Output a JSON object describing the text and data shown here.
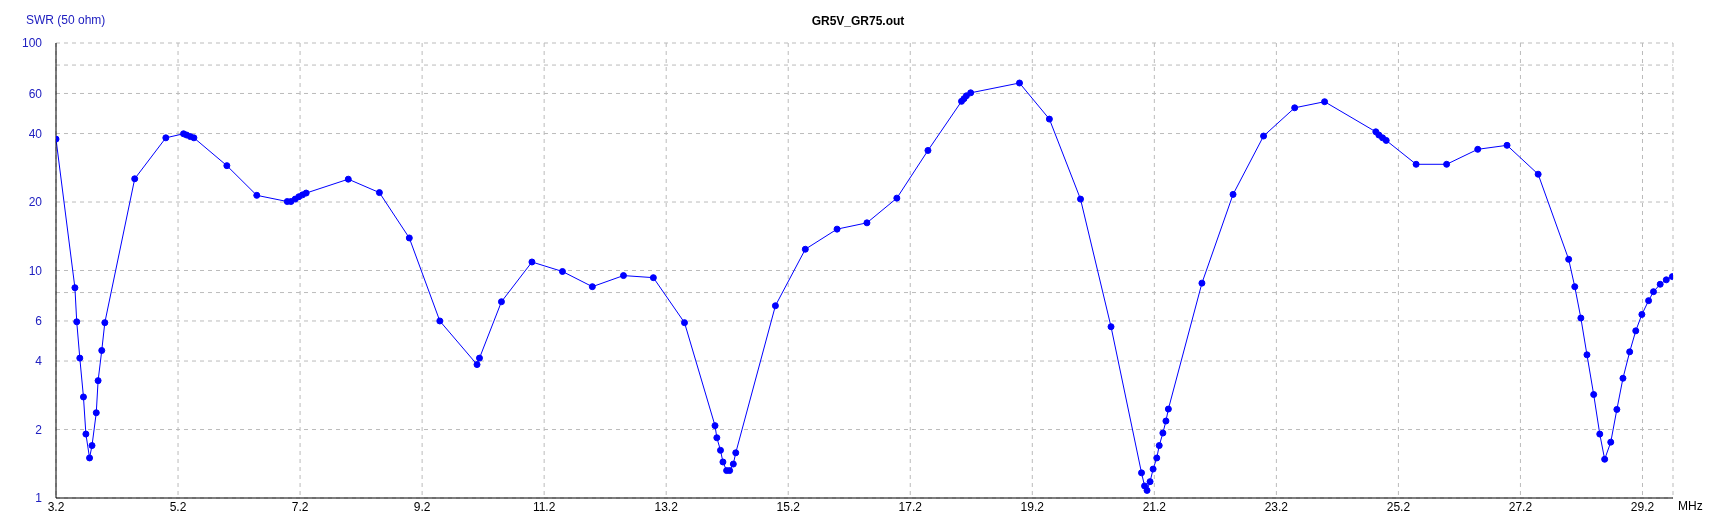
{
  "chart_data": {
    "type": "line",
    "title": "GR5V_GR75.out",
    "ylabel": "SWR (50 ohm)",
    "xlabel": "MHz",
    "x": [
      3.2,
      3.51,
      3.54,
      3.59,
      3.65,
      3.69,
      3.75,
      3.79,
      3.86,
      3.89,
      3.95,
      4.0,
      4.49,
      5.0,
      5.29,
      5.34,
      5.4,
      5.46,
      6.0,
      6.49,
      6.99,
      7.05,
      7.12,
      7.18,
      7.24,
      7.3,
      7.99,
      8.5,
      8.99,
      9.49,
      10.1,
      10.14,
      10.5,
      11.0,
      11.5,
      11.99,
      12.5,
      12.99,
      13.5,
      14.0,
      14.03,
      14.09,
      14.13,
      14.19,
      14.24,
      14.3,
      14.34,
      14.99,
      15.48,
      16.0,
      16.49,
      16.98,
      17.49,
      18.04,
      18.08,
      18.12,
      18.19,
      18.99,
      19.48,
      19.99,
      20.49,
      20.99,
      21.04,
      21.08,
      21.13,
      21.18,
      21.24,
      21.28,
      21.34,
      21.39,
      21.43,
      21.98,
      22.49,
      22.99,
      23.5,
      23.99,
      24.83,
      24.88,
      24.94,
      25.0,
      25.49,
      25.99,
      26.5,
      26.98,
      27.49,
      27.99,
      28.09,
      28.19,
      28.29,
      28.4,
      28.5,
      28.58,
      28.68,
      28.78,
      28.88,
      28.99,
      29.09,
      29.19,
      29.3,
      29.38,
      29.49,
      29.59,
      29.69
    ],
    "values": [
      37.8,
      8.4,
      5.95,
      4.12,
      2.78,
      1.91,
      1.5,
      1.7,
      2.37,
      3.28,
      4.45,
      5.9,
      25.3,
      38.3,
      39.9,
      39.4,
      38.8,
      38.3,
      28.9,
      21.4,
      20.1,
      20.1,
      20.6,
      21.1,
      21.5,
      21.9,
      25.2,
      22.0,
      13.9,
      6.0,
      3.86,
      4.12,
      7.29,
      10.9,
      9.9,
      8.49,
      9.5,
      9.3,
      5.9,
      2.08,
      1.84,
      1.62,
      1.44,
      1.32,
      1.32,
      1.41,
      1.58,
      7.0,
      12.4,
      15.2,
      16.2,
      20.8,
      33.7,
      55.4,
      56.9,
      58.6,
      60.4,
      66.7,
      46.3,
      20.6,
      5.66,
      1.29,
      1.13,
      1.08,
      1.18,
      1.34,
      1.5,
      1.7,
      1.93,
      2.18,
      2.46,
      8.8,
      21.6,
      39.0,
      51.9,
      55.2,
      40.7,
      39.4,
      38.3,
      37.3,
      29.3,
      29.3,
      34.1,
      35.5,
      26.5,
      11.2,
      8.49,
      6.18,
      4.26,
      2.85,
      1.91,
      1.48,
      1.76,
      2.45,
      3.36,
      4.39,
      5.43,
      6.41,
      7.37,
      8.07,
      8.7,
      9.1,
      9.4
    ],
    "color": "#0000ff",
    "marker": "circle",
    "line_style": "solid",
    "xlim": [
      3.2,
      29.7
    ],
    "xticks": [
      3.2,
      5.2,
      7.2,
      9.2,
      11.2,
      13.2,
      15.2,
      17.2,
      19.2,
      21.2,
      23.2,
      25.2,
      27.2,
      29.2
    ],
    "ylim": [
      1,
      100
    ],
    "yticks": [
      1,
      2,
      4,
      6,
      {
        "value": 8,
        "label": null
      },
      10,
      20,
      40,
      60,
      {
        "value": 80,
        "label": null
      },
      100
    ],
    "log": "y",
    "grid": true
  }
}
